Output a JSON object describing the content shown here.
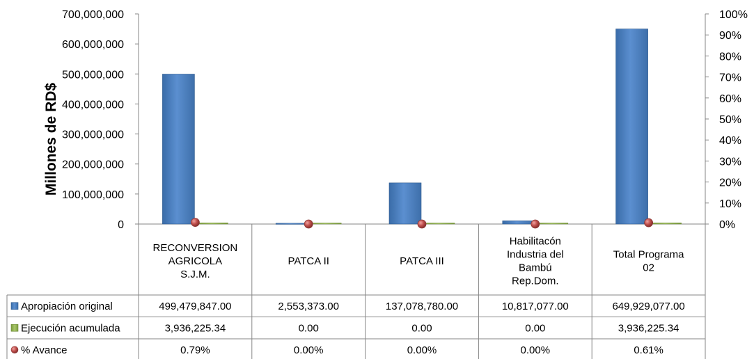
{
  "chart_data": {
    "type": "bar",
    "ylabel": "Millones de RD$",
    "ylim": [
      0,
      700000000
    ],
    "y_ticks": [
      "0",
      "100,000,000",
      "200,000,000",
      "300,000,000",
      "400,000,000",
      "500,000,000",
      "600,000,000",
      "700,000,000"
    ],
    "y2lim": [
      0,
      1
    ],
    "y2_ticks": [
      "0%",
      "10%",
      "20%",
      "30%",
      "40%",
      "50%",
      "60%",
      "70%",
      "80%",
      "90%",
      "100%"
    ],
    "grid": false,
    "legend": "data-table",
    "categories": [
      [
        "RECONVERSION",
        "AGRICOLA",
        "S.J.M."
      ],
      [
        "PATCA II"
      ],
      [
        "PATCA III"
      ],
      [
        "Habilitacón",
        "Industria del",
        "Bambú",
        "Rep.Dom."
      ],
      [
        "Total Programa",
        "02"
      ]
    ],
    "series": [
      {
        "name": "Apropiación original",
        "kind": "bar",
        "axis": "left",
        "color": "#4F81BD",
        "values": [
          499479847.0,
          2553373.0,
          137078780.0,
          10817077.0,
          649929077.0
        ],
        "labels": [
          "499,479,847.00",
          "2,553,373.00",
          "137,078,780.00",
          "10,817,077.00",
          "649,929,077.00"
        ]
      },
      {
        "name": "Ejecución acumulada",
        "kind": "bar",
        "axis": "left",
        "color": "#9BBB59",
        "values": [
          3936225.34,
          0,
          0,
          0,
          3936225.34
        ],
        "labels": [
          "3,936,225.34",
          "0.00",
          "0.00",
          "0.00",
          "3,936,225.34"
        ]
      },
      {
        "name": "% Avance",
        "kind": "marker",
        "axis": "right",
        "color": "#C0504D",
        "values": [
          0.0079,
          0,
          0,
          0,
          0.0061
        ],
        "labels": [
          "0.79%",
          "0.00%",
          "0.00%",
          "0.00%",
          "0.61%"
        ]
      }
    ]
  }
}
